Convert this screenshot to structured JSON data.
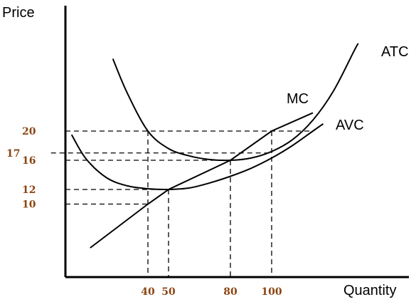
{
  "chart_data": {
    "type": "line",
    "title": "",
    "ylabel": "Price",
    "xlabel": "Quantity",
    "xlim": [
      0,
      155
    ],
    "ylim": [
      0,
      35.5
    ],
    "colors": {
      "tick_label": "#8b4513",
      "lines": "#000000"
    },
    "x_ticks": [
      {
        "label": "40",
        "value": 40
      },
      {
        "label": "50",
        "value": 50
      },
      {
        "label": "80",
        "value": 80
      },
      {
        "label": "100",
        "value": 100
      }
    ],
    "y_ticks": [
      {
        "label": "10",
        "value": 10
      },
      {
        "label": "12",
        "value": 12
      },
      {
        "label": "16",
        "value": 16
      },
      {
        "label": "17",
        "value": 17
      },
      {
        "label": "20",
        "value": 20
      }
    ],
    "series": [
      {
        "name": "ATC",
        "points": [
          [
            23,
            29.9
          ],
          [
            30,
            25.2
          ],
          [
            40,
            20
          ],
          [
            50,
            17.6
          ],
          [
            60,
            16.6
          ],
          [
            70,
            16.1
          ],
          [
            80,
            16
          ],
          [
            90,
            16.3
          ],
          [
            100,
            17.2
          ],
          [
            110,
            18.8
          ],
          [
            120,
            21.5
          ],
          [
            130,
            25.5
          ],
          [
            140,
            31
          ],
          [
            142,
            32
          ]
        ]
      },
      {
        "name": "AVC",
        "points": [
          [
            3,
            19.5
          ],
          [
            10,
            16.2
          ],
          [
            20,
            13.6
          ],
          [
            30,
            12.5
          ],
          [
            40,
            12.1
          ],
          [
            50,
            12
          ],
          [
            60,
            12.2
          ],
          [
            70,
            12.9
          ],
          [
            80,
            13.8
          ],
          [
            90,
            14.9
          ],
          [
            100,
            16.3
          ],
          [
            110,
            18
          ],
          [
            120,
            20
          ],
          [
            125,
            21
          ]
        ]
      },
      {
        "name": "MC",
        "points": [
          [
            12,
            4
          ],
          [
            40,
            10
          ],
          [
            50,
            12
          ],
          [
            80,
            16
          ],
          [
            100,
            20
          ],
          [
            120,
            22.5
          ]
        ]
      }
    ],
    "guides": [
      {
        "label": "20",
        "y": 20,
        "x_end": 120,
        "drops": [
          40,
          100
        ]
      },
      {
        "label": "17",
        "y": 17,
        "x_end": 100,
        "x_start_offset": -7,
        "drops": []
      },
      {
        "label": "16",
        "y": 16,
        "x_end": 80,
        "drops": [
          80
        ]
      },
      {
        "label": "12",
        "y": 12,
        "x_end": 50,
        "drops": [
          50
        ]
      },
      {
        "label": "10",
        "y": 10,
        "x_end": 40,
        "drops": []
      }
    ]
  }
}
